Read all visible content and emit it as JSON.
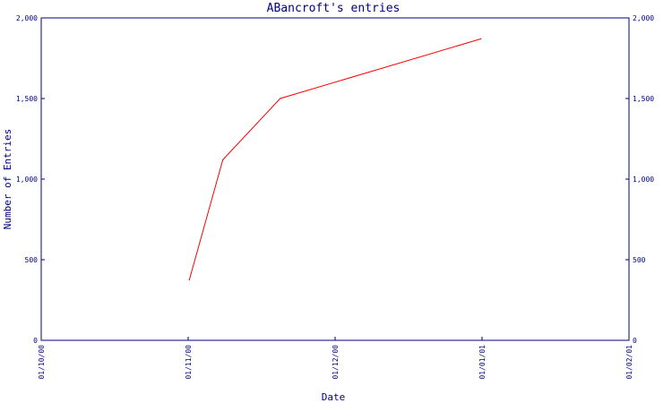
{
  "colors": {
    "axis": "#000080",
    "text": "#000080",
    "series": "#ff0000",
    "background": "#ffffff"
  },
  "chart_data": {
    "type": "line",
    "title": "ABancroft's entries",
    "xlabel": "Date",
    "ylabel": "Number of Entries",
    "x_ticks": [
      "01/10/00",
      "01/11/00",
      "01/12/00",
      "01/01/01",
      "01/02/01"
    ],
    "y_ticks_left": [
      "0",
      "500",
      "1,000",
      "1,500",
      "2,000"
    ],
    "y_ticks_right": [
      "0",
      "500",
      "1,000",
      "1,500",
      "2,000"
    ],
    "ylim": [
      0,
      2000
    ],
    "xlim": [
      "2000-10-01",
      "2001-02-01"
    ],
    "grid": false,
    "series": [
      {
        "points": [
          {
            "x": "2000-11-01",
            "y": 375
          },
          {
            "x": "2000-11-08",
            "y": 1120
          },
          {
            "x": "2000-11-20",
            "y": 1500
          },
          {
            "x": "2001-01-01",
            "y": 1870
          }
        ]
      }
    ]
  }
}
